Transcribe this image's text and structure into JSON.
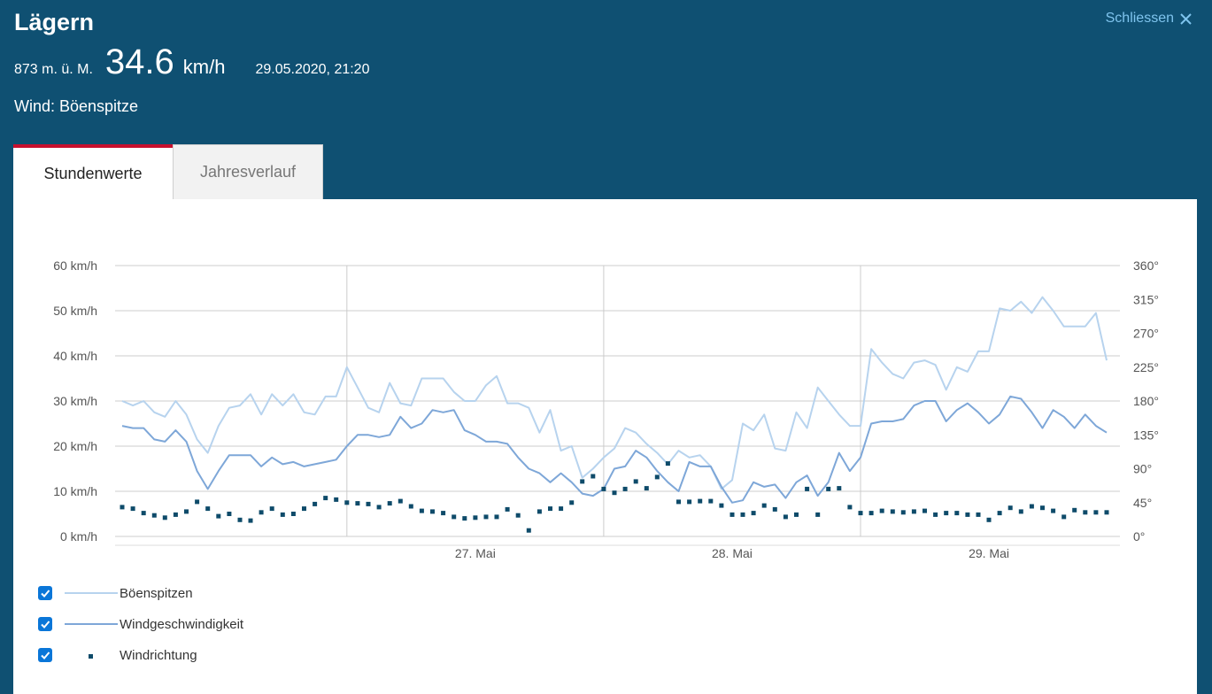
{
  "station": {
    "name": "Lägern",
    "altitude": "873 m. ü. M.",
    "value": "34.6",
    "unit": "km/h",
    "timestamp": "29.05.2020, 21:20",
    "parameter": "Wind: Böenspitze"
  },
  "close_label": "Schliessen",
  "tabs": [
    {
      "label": "Stundenwerte",
      "active": true
    },
    {
      "label": "Jahresverlauf",
      "active": false
    }
  ],
  "colors": {
    "header_bg": "#0f5072",
    "gust": "#b7d3ee",
    "speed": "#7ea7d8",
    "direction": "#0e4b6a",
    "tab_accent": "#c8102e",
    "checkbox": "#0a76d8"
  },
  "chart_data": {
    "type": "line",
    "y_left": {
      "label": "",
      "range": [
        0,
        60
      ],
      "unit": "km/h",
      "ticks": [
        "0 km/h",
        "10 km/h",
        "20 km/h",
        "30 km/h",
        "40 km/h",
        "50 km/h",
        "60 km/h"
      ]
    },
    "y_right": {
      "label": "",
      "range": [
        0,
        360
      ],
      "unit": "°",
      "ticks": [
        "0°",
        "45°",
        "90°",
        "135°",
        "180°",
        "225°",
        "270°",
        "315°",
        "360°"
      ]
    },
    "x_ticks": [
      "27. Mai",
      "28. Mai",
      "29. Mai"
    ],
    "grid": true,
    "series": [
      {
        "name": "Böenspitzen",
        "type": "line",
        "axis": "left",
        "values": [
          30,
          29,
          30,
          27.5,
          26.5,
          30,
          27,
          21.5,
          18.5,
          24.5,
          28.5,
          29,
          31.5,
          27,
          31.5,
          29,
          31.5,
          27.5,
          27,
          31,
          31,
          37.5,
          33,
          28.5,
          27.5,
          34,
          29.5,
          29,
          35,
          35,
          35,
          32,
          30,
          30,
          33.5,
          35.5,
          29.5,
          29.5,
          28.5,
          23,
          28,
          19,
          20,
          13,
          15,
          17.5,
          19.5,
          24,
          23,
          20.5,
          18.5,
          16,
          19,
          17.5,
          18,
          15.5,
          10.5,
          12.5,
          25,
          23.5,
          27,
          19.5,
          19,
          27.5,
          24,
          33,
          30,
          27,
          24.5,
          24.5,
          41.5,
          38.5,
          36,
          35,
          38.5,
          39,
          38,
          32.5,
          37.5,
          36.5,
          41,
          41,
          50.5,
          50,
          52,
          49.5,
          53,
          50,
          46.5,
          46.5,
          46.5,
          49.5,
          39
        ]
      },
      {
        "name": "Windgeschwindigkeit",
        "type": "line",
        "axis": "left",
        "values": [
          24.5,
          24,
          24,
          21.5,
          21,
          23.5,
          21,
          14.5,
          10.5,
          14.5,
          18,
          18,
          18,
          15.5,
          17.5,
          16,
          16.5,
          15.5,
          16,
          16.5,
          17,
          20,
          22.5,
          22.5,
          22,
          22.5,
          26.5,
          24,
          25,
          28,
          27.5,
          28,
          23.5,
          22.5,
          21,
          21,
          20.5,
          17.5,
          15,
          14,
          12,
          14,
          12,
          9.5,
          9,
          10.5,
          15,
          15.5,
          19,
          17.5,
          14.5,
          12,
          10,
          16.5,
          15.5,
          15.5,
          11,
          7.5,
          8,
          12,
          11,
          11.5,
          8.5,
          12,
          13.5,
          9,
          12,
          18.5,
          14.5,
          17.5,
          25,
          25.5,
          25.5,
          26,
          29,
          30,
          30,
          25.5,
          28,
          29.5,
          27.5,
          25,
          27,
          31,
          30.5,
          27.5,
          24,
          28,
          26.5,
          24,
          27,
          24.5,
          23
        ]
      },
      {
        "name": "Windrichtung",
        "type": "scatter",
        "axis": "right",
        "values": [
          39,
          37,
          31,
          28,
          25,
          29,
          33,
          46,
          37,
          27,
          30,
          22,
          21,
          32,
          37,
          29,
          30,
          37,
          43,
          51,
          49,
          45,
          44,
          43,
          39,
          44,
          47,
          40,
          34,
          33,
          31,
          26,
          24,
          25,
          26,
          26,
          36,
          28,
          8,
          33,
          37,
          37,
          45,
          73,
          80,
          63,
          58,
          63,
          73,
          64,
          79,
          97,
          46,
          46,
          47,
          47,
          41,
          29,
          29,
          31,
          41,
          36,
          26,
          29,
          63,
          29,
          63,
          64,
          39,
          31,
          31,
          34,
          33,
          32,
          33,
          34,
          29,
          31,
          31,
          29,
          29,
          22,
          31,
          38,
          33,
          40,
          38,
          34,
          26,
          35,
          32,
          32,
          32
        ]
      }
    ],
    "legend": "bottom-left"
  }
}
